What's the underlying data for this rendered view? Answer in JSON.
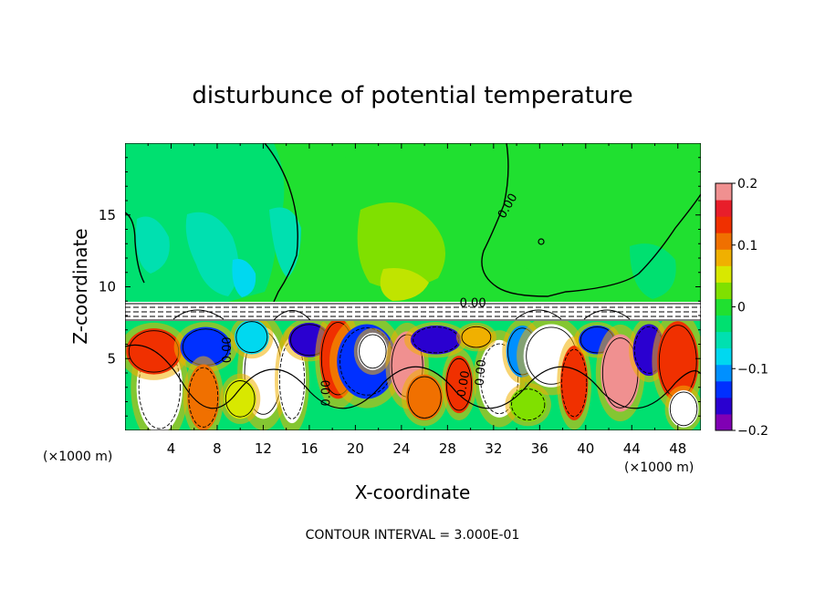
{
  "chart_data": {
    "type": "heatmap",
    "title": "disturbunce of potential temperature",
    "xlabel": "X-coordinate",
    "ylabel": "Z-coordinate",
    "x_unit_left": "(×1000 m)",
    "x_unit_right": "(×1000 m)",
    "xlim": [
      0,
      50
    ],
    "ylim": [
      0,
      20
    ],
    "x_ticks": [
      4,
      8,
      12,
      16,
      20,
      24,
      28,
      32,
      36,
      40,
      44,
      48
    ],
    "y_ticks": [
      5,
      10,
      15
    ],
    "colorbar": {
      "range": [
        -0.2,
        0.2
      ],
      "ticks": [
        "0.2",
        "0.1",
        "0",
        "−0.1",
        "−0.2"
      ],
      "tick_values": [
        0.2,
        0.1,
        0,
        -0.1,
        -0.2
      ],
      "colors": [
        "#8000b4",
        "#2a00d0",
        "#0030ff",
        "#0090ff",
        "#00d8f0",
        "#00e0b0",
        "#00e070",
        "#20e030",
        "#80e000",
        "#d8e800",
        "#f0b000",
        "#f07000",
        "#f03000",
        "#e81e2a",
        "#f09090"
      ]
    },
    "contour_interval": "CONTOUR INTERVAL = 3.000E-01",
    "contour_labels": [
      {
        "text": "0.00",
        "x": 33.5,
        "z": 15.5,
        "rotate": -60
      },
      {
        "text": "0.00",
        "x": 30.2,
        "z": 8.6,
        "rotate": 0
      },
      {
        "text": "0.00",
        "x": 9.2,
        "z": 5.6,
        "rotate": -90
      },
      {
        "text": "0.00",
        "x": 17.8,
        "z": 2.6,
        "rotate": -90
      },
      {
        "text": "0.00",
        "x": 29.7,
        "z": 3.2,
        "rotate": -80
      },
      {
        "text": "0.00",
        "x": 31.2,
        "z": 4.0,
        "rotate": -85
      }
    ],
    "field_description_values": {
      "upper_region_z_range": [
        9,
        20
      ],
      "upper_region_value": 0.0,
      "stable_layer_z_range": [
        7.6,
        9.0
      ],
      "lower_region_z_range": [
        0,
        7.6
      ],
      "lower_region_value_range": [
        -0.2,
        0.2
      ]
    }
  }
}
